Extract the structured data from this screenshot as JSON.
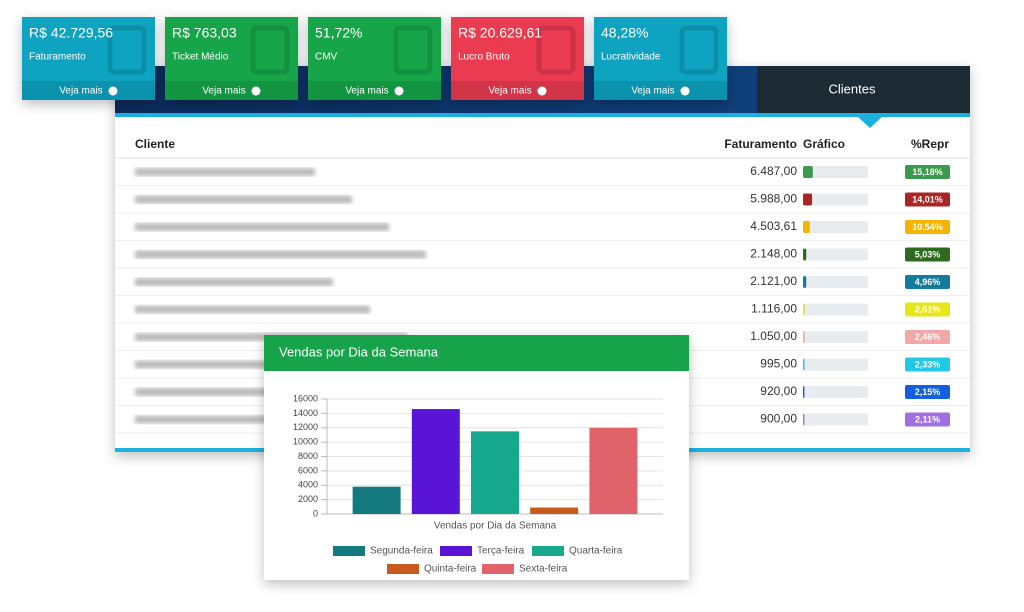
{
  "cards": [
    {
      "value": "R$ 42.729,56",
      "label": "Faturamento",
      "link": "Veja mais",
      "color": "#0ba3c1"
    },
    {
      "value": "R$ 763,03",
      "label": "Ticket Médio",
      "link": "Veja mais",
      "color": "#17a549"
    },
    {
      "value": "51,72%",
      "label": "CMV",
      "link": "Veja mais",
      "color": "#14a548"
    },
    {
      "value": "R$ 20.629,61",
      "label": "Lucro Bruto",
      "link": "Veja mais",
      "color": "#ea3a51"
    },
    {
      "value": "48,28%",
      "label": "Lucratividade",
      "link": "Veja mais",
      "color": "#0ba3c1"
    }
  ],
  "tab": {
    "label": "Clientes"
  },
  "table": {
    "columns": [
      "Cliente",
      "Faturamento",
      "Gráfico",
      "%Repr"
    ],
    "rows": [
      {
        "faturamento": "6.487,00",
        "repr": "15,18%",
        "color": "#3b9a4b"
      },
      {
        "faturamento": "5.988,00",
        "repr": "14,01%",
        "color": "#a82626"
      },
      {
        "faturamento": "4.503,61",
        "repr": "10,54%",
        "color": "#f4b400"
      },
      {
        "faturamento": "2.148,00",
        "repr": "5,03%",
        "color": "#2e6b1e"
      },
      {
        "faturamento": "2.121,00",
        "repr": "4,96%",
        "color": "#137b9b"
      },
      {
        "faturamento": "1.116,00",
        "repr": "2,61%",
        "color": "#e6e619"
      },
      {
        "faturamento": "1.050,00",
        "repr": "2,46%",
        "color": "#f2a8a8"
      },
      {
        "faturamento": "995,00",
        "repr": "2,33%",
        "color": "#22c8e8"
      },
      {
        "faturamento": "920,00",
        "repr": "2,15%",
        "color": "#1060e0"
      },
      {
        "faturamento": "900,00",
        "repr": "2,11%",
        "color": "#a070e0"
      }
    ]
  },
  "chart": {
    "type": "bar",
    "title": "Vendas por Dia da Semana",
    "x_label": "Vendas por Dia da Semana",
    "categories": [
      "Segunda-feira",
      "Terça-feira",
      "Quarta-feira",
      "Quinta-feira",
      "Sexta-feira"
    ],
    "values": [
      3800,
      14600,
      11500,
      900,
      12000
    ],
    "colors": [
      "#157a80",
      "#5a14d8",
      "#17a98e",
      "#c85a1c",
      "#e0636a"
    ],
    "ylim": [
      0,
      16000
    ],
    "yticks": [
      0,
      2000,
      4000,
      6000,
      8000,
      10000,
      12000,
      14000,
      16000
    ],
    "grid": true
  }
}
